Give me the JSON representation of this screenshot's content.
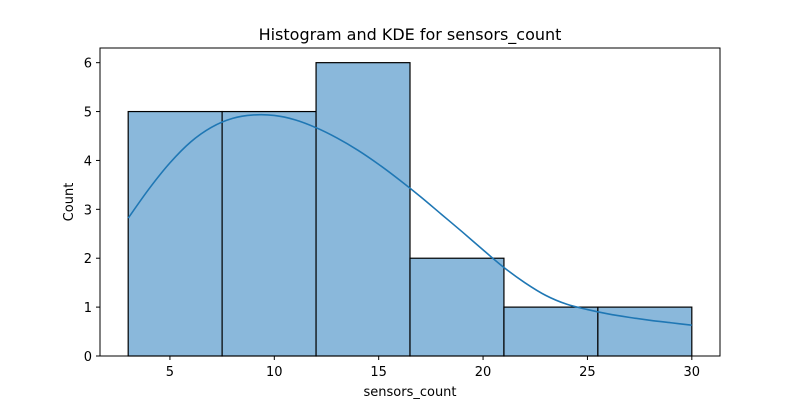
{
  "chart_data": {
    "type": "bar",
    "title": "Histogram and KDE for sensors_count",
    "xlabel": "sensors_count",
    "ylabel": "Count",
    "xlim": [
      1.65,
      31.35
    ],
    "ylim": [
      0,
      6.3
    ],
    "xticks": [
      5,
      10,
      15,
      20,
      25,
      30
    ],
    "yticks": [
      0,
      1,
      2,
      3,
      4,
      5,
      6
    ],
    "bins": [
      {
        "start": 3.0,
        "end": 7.5,
        "count": 5
      },
      {
        "start": 7.5,
        "end": 12.0,
        "count": 5
      },
      {
        "start": 12.0,
        "end": 16.5,
        "count": 6
      },
      {
        "start": 16.5,
        "end": 21.0,
        "count": 2
      },
      {
        "start": 21.0,
        "end": 25.5,
        "count": 1
      },
      {
        "start": 25.5,
        "end": 30.0,
        "count": 1
      }
    ],
    "kde": {
      "x": [
        3,
        4,
        5,
        6,
        7,
        8,
        9,
        10,
        11,
        12,
        13,
        14,
        15,
        16,
        17,
        18,
        19,
        20,
        21,
        22,
        23,
        24,
        25,
        26,
        27,
        28,
        29,
        30
      ],
      "y": [
        2.82,
        3.42,
        3.95,
        4.38,
        4.68,
        4.86,
        4.93,
        4.92,
        4.83,
        4.67,
        4.46,
        4.21,
        3.92,
        3.6,
        3.26,
        2.9,
        2.54,
        2.17,
        1.81,
        1.5,
        1.24,
        1.06,
        0.95,
        0.86,
        0.79,
        0.73,
        0.68,
        0.63
      ]
    },
    "grid": false,
    "colors": {
      "bar_fill": "#8ab8db",
      "bar_edge": "#000000",
      "kde_line": "#1f77b4"
    }
  }
}
